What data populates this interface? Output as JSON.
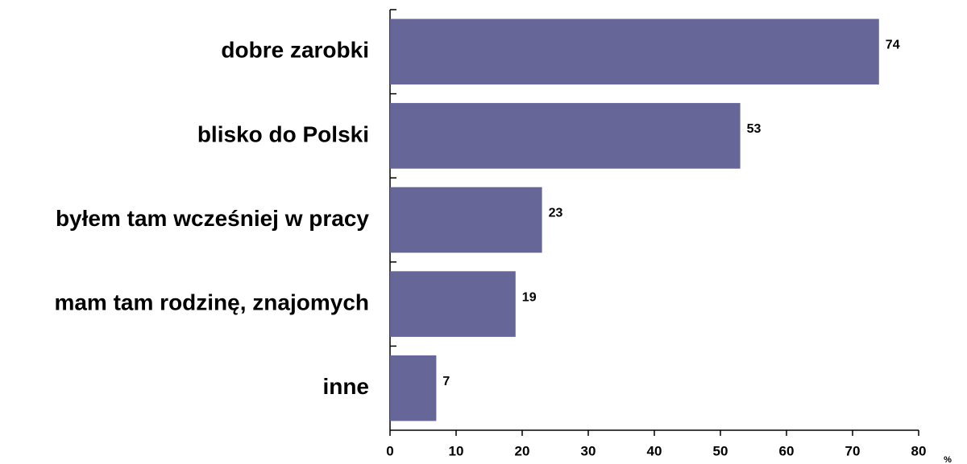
{
  "chart_data": {
    "type": "bar",
    "orientation": "horizontal",
    "categories": [
      "dobre zarobki",
      "blisko do Polski",
      "byłem tam wcześniej w pracy",
      "mam tam rodzinę, znajomych",
      "inne"
    ],
    "values": [
      74,
      53,
      23,
      19,
      7
    ],
    "color": "#666699",
    "xlim": [
      0,
      80
    ],
    "xticks": [
      0,
      10,
      20,
      30,
      40,
      50,
      60,
      70,
      80
    ],
    "x_label": "%"
  }
}
